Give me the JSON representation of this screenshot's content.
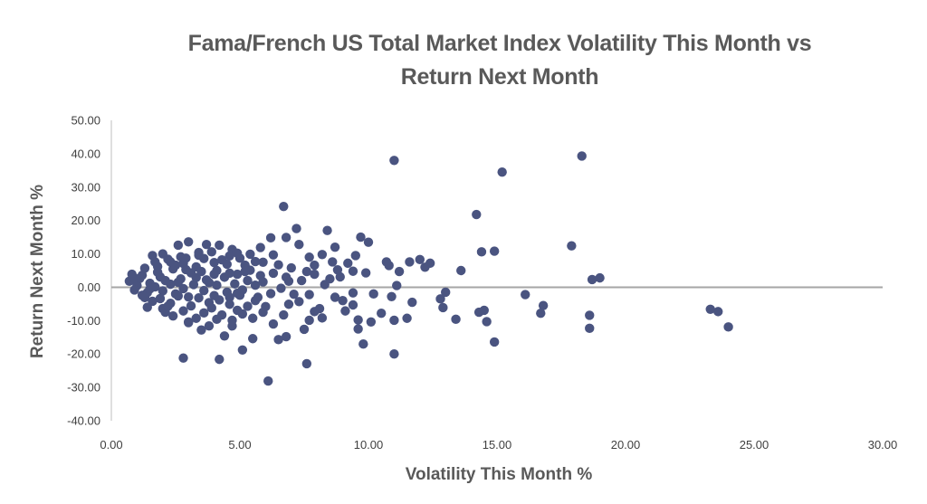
{
  "chart_data": {
    "type": "scatter",
    "title_line1": "Fama/French US Total Market Index Volatility This Month vs",
    "title_line2": "Return Next Month",
    "xlabel": "Volatility This Month %",
    "ylabel": "Return Next Month %",
    "xlim": [
      0,
      30
    ],
    "ylim": [
      -40,
      50
    ],
    "x_ticks": [
      "0.00",
      "5.00",
      "10.00",
      "15.00",
      "20.00",
      "25.00",
      "30.00"
    ],
    "y_ticks": [
      "50.00",
      "40.00",
      "30.00",
      "20.00",
      "10.00",
      "0.00",
      "-10.00",
      "-20.00",
      "-30.00",
      "-40.00"
    ],
    "grid": false,
    "legend": "none",
    "colors": {
      "marker": "#4a5480",
      "zero_line": "#a6a6a6",
      "axis": "#bfbfbf"
    },
    "points": [
      [
        11.0,
        38.0
      ],
      [
        18.3,
        39.3
      ],
      [
        15.2,
        34.5
      ],
      [
        14.2,
        21.8
      ],
      [
        6.7,
        24.2
      ],
      [
        7.2,
        17.6
      ],
      [
        8.4,
        17.0
      ],
      [
        9.7,
        15.0
      ],
      [
        10.0,
        13.5
      ],
      [
        17.9,
        12.4
      ],
      [
        14.4,
        10.6
      ],
      [
        14.9,
        10.8
      ],
      [
        13.6,
        5.0
      ],
      [
        12.0,
        8.3
      ],
      [
        12.4,
        7.2
      ],
      [
        11.6,
        7.6
      ],
      [
        12.2,
        6.0
      ],
      [
        10.8,
        6.5
      ],
      [
        11.2,
        4.7
      ],
      [
        18.7,
        2.3
      ],
      [
        19.0,
        2.8
      ],
      [
        11.1,
        0.5
      ],
      [
        16.1,
        -2.2
      ],
      [
        16.8,
        -5.5
      ],
      [
        16.7,
        -7.8
      ],
      [
        18.6,
        -8.4
      ],
      [
        18.6,
        -12.3
      ],
      [
        14.5,
        -6.9
      ],
      [
        14.3,
        -7.5
      ],
      [
        14.6,
        -10.3
      ],
      [
        14.9,
        -16.4
      ],
      [
        23.3,
        -6.6
      ],
      [
        23.6,
        -7.3
      ],
      [
        24.0,
        -11.9
      ],
      [
        13.0,
        -1.5
      ],
      [
        12.8,
        -3.5
      ],
      [
        12.9,
        -6.1
      ],
      [
        13.4,
        -9.6
      ],
      [
        11.7,
        -4.5
      ],
      [
        11.5,
        -9.3
      ],
      [
        11.0,
        -9.9
      ],
      [
        11.0,
        -20.0
      ],
      [
        10.5,
        -7.8
      ],
      [
        10.1,
        -10.4
      ],
      [
        9.6,
        -12.5
      ],
      [
        9.6,
        -9.8
      ],
      [
        9.8,
        -17.0
      ],
      [
        9.4,
        -5.3
      ],
      [
        9.0,
        -4.0
      ],
      [
        8.7,
        -3.0
      ],
      [
        8.2,
        -9.2
      ],
      [
        7.9,
        -7.3
      ],
      [
        7.7,
        -9.9
      ],
      [
        7.5,
        -12.6
      ],
      [
        7.6,
        -22.9
      ],
      [
        6.8,
        -14.8
      ],
      [
        6.5,
        -15.7
      ],
      [
        6.3,
        -11.0
      ],
      [
        6.1,
        -28.1
      ],
      [
        5.5,
        -15.4
      ],
      [
        5.1,
        -18.8
      ],
      [
        4.4,
        -14.6
      ],
      [
        4.2,
        -21.6
      ],
      [
        2.8,
        -21.2
      ],
      [
        3.0,
        -10.4
      ],
      [
        3.5,
        -12.8
      ],
      [
        3.8,
        -11.6
      ],
      [
        4.7,
        -11.6
      ],
      [
        6.8,
        14.9
      ],
      [
        6.2,
        14.8
      ],
      [
        5.8,
        11.9
      ],
      [
        7.3,
        12.8
      ],
      [
        8.7,
        12.0
      ],
      [
        8.2,
        9.8
      ],
      [
        8.6,
        7.6
      ],
      [
        9.5,
        9.5
      ],
      [
        10.7,
        7.6
      ],
      [
        9.2,
        7.2
      ],
      [
        9.4,
        4.8
      ],
      [
        9.9,
        4.3
      ],
      [
        8.9,
        3.1
      ],
      [
        8.5,
        2.5
      ],
      [
        7.9,
        3.9
      ],
      [
        7.4,
        2.0
      ],
      [
        6.9,
        1.8
      ],
      [
        7.1,
        -2.1
      ],
      [
        7.7,
        -2.2
      ],
      [
        6.9,
        -5.1
      ],
      [
        8.1,
        -6.4
      ],
      [
        9.1,
        -7.1
      ],
      [
        9.4,
        -1.7
      ],
      [
        10.2,
        -2.0
      ],
      [
        10.9,
        -2.8
      ],
      [
        6.3,
        9.7
      ],
      [
        5.9,
        7.5
      ],
      [
        7.7,
        9.0
      ],
      [
        7.9,
        6.6
      ],
      [
        7.0,
        5.8
      ],
      [
        6.3,
        4.2
      ],
      [
        5.7,
        -3.0
      ],
      [
        6.0,
        -5.8
      ],
      [
        6.7,
        -8.3
      ],
      [
        5.9,
        -7.5
      ],
      [
        5.5,
        -9.3
      ],
      [
        5.1,
        -8.0
      ],
      [
        4.7,
        -9.9
      ],
      [
        4.1,
        -9.6
      ],
      [
        3.3,
        -9.3
      ],
      [
        3.0,
        -10.6
      ],
      [
        2.4,
        -8.6
      ],
      [
        2.1,
        -7.5
      ],
      [
        3.0,
        13.6
      ],
      [
        2.6,
        12.6
      ],
      [
        3.7,
        12.8
      ],
      [
        4.2,
        12.6
      ],
      [
        4.7,
        11.3
      ],
      [
        4.6,
        9.4
      ],
      [
        4.9,
        10.2
      ],
      [
        5.4,
        9.9
      ],
      [
        3.4,
        10.4
      ],
      [
        2.0,
        10.0
      ],
      [
        1.6,
        9.5
      ],
      [
        2.2,
        8.4
      ],
      [
        2.8,
        7.1
      ],
      [
        3.6,
        8.6
      ],
      [
        4.0,
        7.4
      ],
      [
        5.0,
        8.7
      ],
      [
        5.2,
        6.6
      ],
      [
        4.1,
        5.0
      ],
      [
        3.1,
        4.3
      ],
      [
        1.8,
        6.2
      ],
      [
        1.3,
        5.7
      ],
      [
        2.4,
        5.5
      ],
      [
        5.4,
        5.1
      ],
      [
        5.8,
        3.5
      ],
      [
        5.3,
        2.0
      ],
      [
        5.6,
        0.6
      ],
      [
        4.9,
        3.9
      ],
      [
        4.4,
        3.0
      ],
      [
        3.7,
        2.2
      ],
      [
        2.7,
        2.5
      ],
      [
        1.9,
        3.1
      ],
      [
        1.2,
        3.6
      ],
      [
        0.8,
        3.9
      ],
      [
        0.7,
        1.8
      ],
      [
        1.0,
        0.5
      ],
      [
        1.5,
        1.2
      ],
      [
        2.3,
        0.9
      ],
      [
        3.2,
        0.8
      ],
      [
        4.1,
        0.6
      ],
      [
        4.8,
        1.0
      ],
      [
        5.1,
        -0.8
      ],
      [
        4.5,
        -1.5
      ],
      [
        3.6,
        -1.0
      ],
      [
        2.8,
        -0.4
      ],
      [
        2.0,
        -1.1
      ],
      [
        1.4,
        -1.6
      ],
      [
        0.9,
        -0.8
      ],
      [
        1.2,
        -2.4
      ],
      [
        1.9,
        -3.4
      ],
      [
        2.6,
        -2.6
      ],
      [
        3.4,
        -3.2
      ],
      [
        4.2,
        -3.8
      ],
      [
        5.0,
        -2.4
      ],
      [
        5.6,
        -4.0
      ],
      [
        5.3,
        -5.7
      ],
      [
        4.6,
        -5.1
      ],
      [
        3.9,
        -6.2
      ],
      [
        3.1,
        -5.6
      ],
      [
        2.3,
        -4.8
      ],
      [
        1.6,
        -4.2
      ],
      [
        1.4,
        -6.0
      ],
      [
        2.0,
        -6.4
      ],
      [
        2.8,
        -7.1
      ],
      [
        3.6,
        -7.7
      ],
      [
        4.3,
        -8.3
      ],
      [
        4.9,
        -6.9
      ],
      [
        2.7,
        9.1
      ],
      [
        3.9,
        10.6
      ],
      [
        1.7,
        7.6
      ],
      [
        2.5,
        6.6
      ],
      [
        3.3,
        6.1
      ],
      [
        4.3,
        8.2
      ],
      [
        5.6,
        7.7
      ],
      [
        1.1,
        2.6
      ],
      [
        1.7,
        0.1
      ],
      [
        2.5,
        -2.0
      ],
      [
        3.3,
        2.9
      ],
      [
        4.0,
        -2.5
      ],
      [
        5.9,
        1.6
      ],
      [
        6.2,
        -1.9
      ],
      [
        6.5,
        6.7
      ],
      [
        6.8,
        3.0
      ],
      [
        7.3,
        -4.3
      ],
      [
        8.3,
        0.8
      ],
      [
        8.8,
        5.2
      ],
      [
        7.6,
        4.7
      ],
      [
        6.6,
        -0.3
      ],
      [
        1.3,
        -3.1
      ],
      [
        0.9,
        2.8
      ],
      [
        1.8,
        4.5
      ],
      [
        2.9,
        5.3
      ],
      [
        3.5,
        4.7
      ],
      [
        4.6,
        4.2
      ],
      [
        5.2,
        4.7
      ],
      [
        2.2,
        -5.7
      ],
      [
        3.8,
        -4.6
      ],
      [
        4.6,
        -3.0
      ],
      [
        2.6,
        1.5
      ],
      [
        3.8,
        1.4
      ],
      [
        4.9,
        -1.8
      ],
      [
        3.0,
        -2.9
      ],
      [
        2.1,
        2.0
      ],
      [
        1.5,
        -0.5
      ],
      [
        3.4,
        9.6
      ],
      [
        2.3,
        7.6
      ],
      [
        2.9,
        8.7
      ],
      [
        4.5,
        6.9
      ],
      [
        4.0,
        3.9
      ]
    ]
  }
}
